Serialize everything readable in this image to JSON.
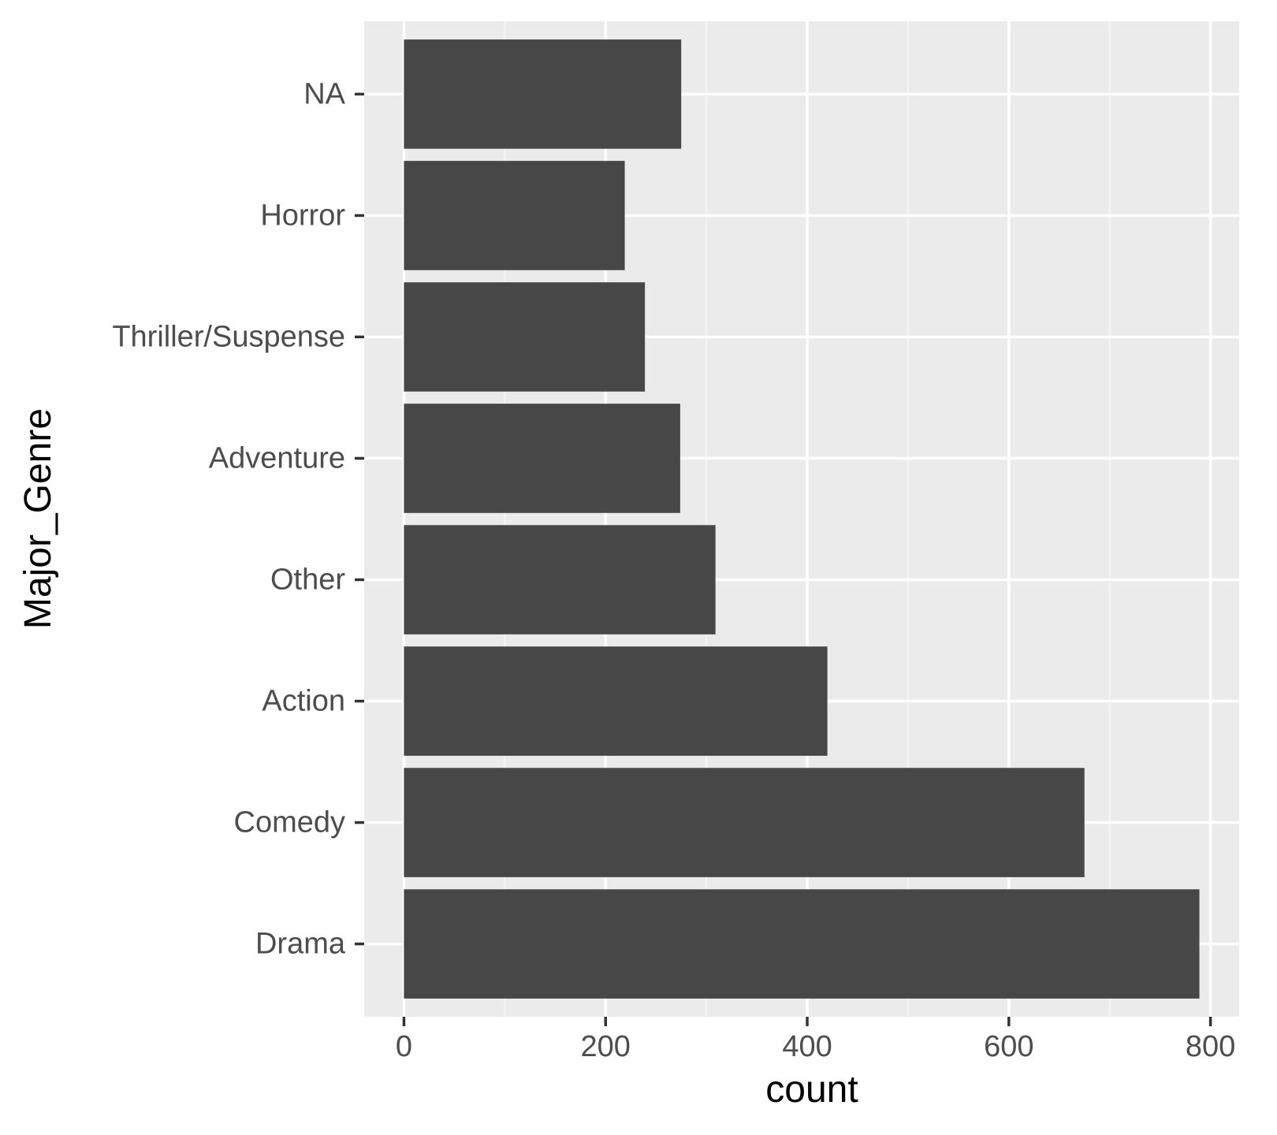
{
  "chart_data": {
    "type": "bar",
    "orientation": "horizontal",
    "categories": [
      "Drama",
      "Comedy",
      "Action",
      "Other",
      "Adventure",
      "Thriller/Suspense",
      "Horror",
      "NA"
    ],
    "values": [
      789,
      675,
      420,
      309,
      274,
      239,
      219,
      275
    ],
    "xlabel": "count",
    "ylabel": "Major_Genre",
    "xticks": [
      "0",
      "200",
      "400",
      "600",
      "800"
    ],
    "xlim": [
      -39.45,
      828.45
    ],
    "grid": true,
    "legend": "none",
    "colors": {
      "bar": "#474747",
      "panel": "#ebebeb",
      "grid_major": "#ffffff",
      "grid_minor": "#f5f5f5",
      "tick_text": "#4d4d4d",
      "tick_mark": "#333333",
      "title_text": "#000000"
    }
  }
}
